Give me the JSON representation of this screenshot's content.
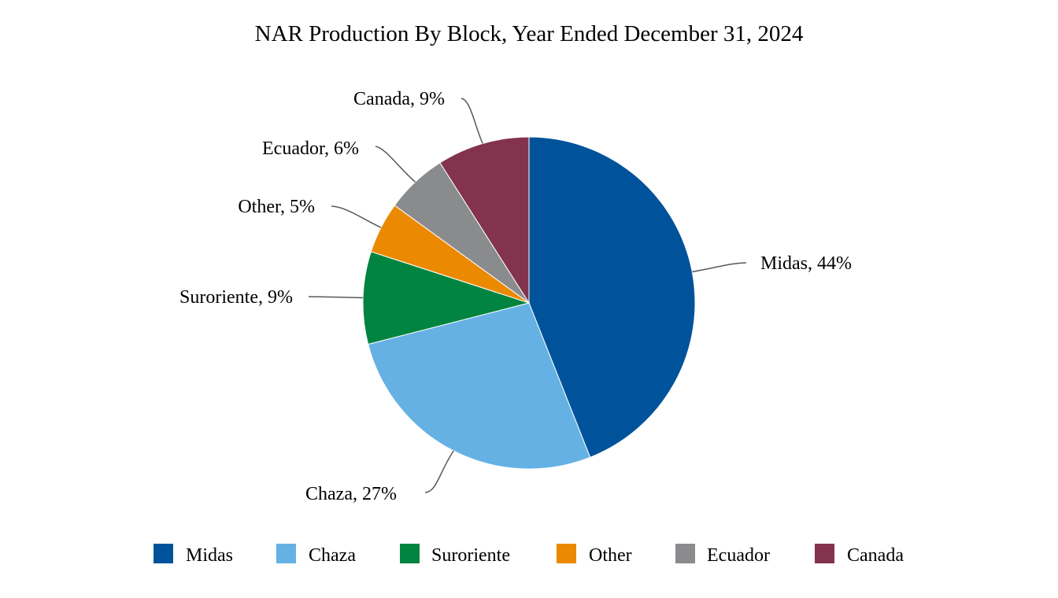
{
  "chart_data": {
    "type": "pie",
    "title": "NAR Production By Block, Year Ended December 31, 2024",
    "start_angle_deg": 0,
    "direction": "clockwise",
    "slices": [
      {
        "name": "Midas",
        "value": 44,
        "label": "Midas, 44%",
        "color": "#00539b"
      },
      {
        "name": "Chaza",
        "value": 27,
        "label": "Chaza, 27%",
        "color": "#65b1e4"
      },
      {
        "name": "Suroriente",
        "value": 9,
        "label": "Suroriente, 9%",
        "color": "#00843f"
      },
      {
        "name": "Other",
        "value": 5,
        "label": "Other, 5%",
        "color": "#eb8900"
      },
      {
        "name": "Ecuador",
        "value": 6,
        "label": "Ecuador, 6%",
        "color": "#8a8b8d"
      },
      {
        "name": "Canada",
        "value": 9,
        "label": "Canada, 9%",
        "color": "#83334e"
      }
    ],
    "legend": {
      "position": "bottom",
      "entries": [
        "Midas",
        "Chaza",
        "Suroriente",
        "Other",
        "Ecuador",
        "Canada"
      ]
    }
  }
}
